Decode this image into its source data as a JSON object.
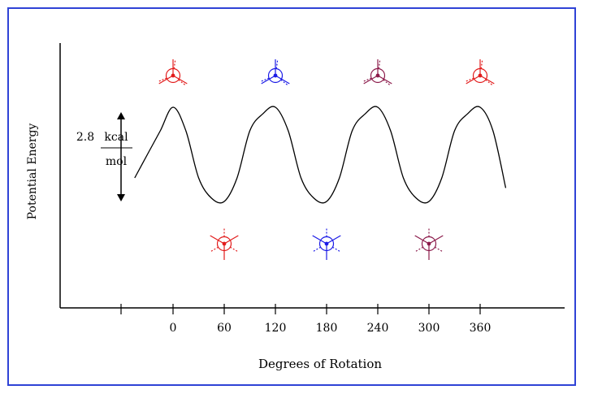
{
  "chart_data": {
    "type": "line",
    "title": "",
    "xlabel": "Degrees of Rotation",
    "ylabel": "Potential Energy",
    "x_ticks": [
      0,
      60,
      120,
      180,
      240,
      300,
      360
    ],
    "x_range": [
      -65,
      405
    ],
    "barrier": {
      "value": "2.8",
      "unit_top": "kcal",
      "unit_bottom": "mol"
    },
    "series": [
      {
        "x": [
          -45,
          -30,
          -15,
          0,
          15,
          30,
          45,
          60,
          75,
          90,
          105,
          120,
          135,
          150,
          165,
          180,
          195,
          210,
          225,
          240,
          255,
          270,
          285,
          300,
          315,
          330,
          345,
          360,
          375,
          390
        ],
        "y": [
          0.7,
          1.4,
          2.1,
          2.8,
          2.1,
          0.7,
          0.1,
          0.0,
          0.7,
          2.1,
          2.6,
          2.8,
          2.1,
          0.7,
          0.1,
          0.0,
          0.7,
          2.1,
          2.6,
          2.8,
          2.1,
          0.7,
          0.1,
          0.0,
          0.7,
          2.1,
          2.6,
          2.8,
          2.1,
          0.4
        ]
      }
    ],
    "conformers": [
      {
        "angle": 0,
        "type": "eclipsed",
        "color": "#e21b1b"
      },
      {
        "angle": 120,
        "type": "eclipsed",
        "color": "#1a1ae6"
      },
      {
        "angle": 240,
        "type": "eclipsed",
        "color": "#8b1a4a"
      },
      {
        "angle": 360,
        "type": "eclipsed",
        "color": "#e21b1b"
      },
      {
        "angle": 60,
        "type": "staggered",
        "color": "#e21b1b"
      },
      {
        "angle": 180,
        "type": "staggered",
        "color": "#1a1ae6"
      },
      {
        "angle": 300,
        "type": "staggered",
        "color": "#8b1a4a"
      }
    ],
    "grid": false,
    "legend": "none"
  }
}
